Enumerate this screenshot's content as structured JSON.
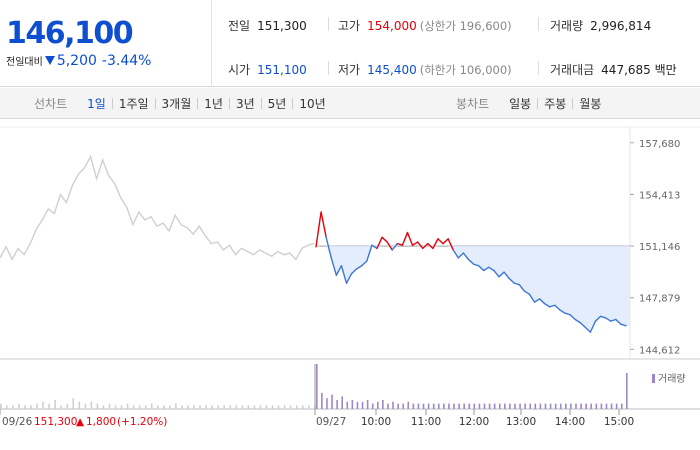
{
  "quote": {
    "current_price": "146,100",
    "change_label": "전일대비",
    "change_amount": "5,200",
    "change_percent": "-3.44%"
  },
  "stats": {
    "prev_close": {
      "label": "전일",
      "value": "151,300"
    },
    "high": {
      "label": "고가",
      "value": "154,000",
      "sub": "(상한가 196,600)"
    },
    "volume": {
      "label": "거래량",
      "value": "2,996,814"
    },
    "open": {
      "label": "시가",
      "value": "151,100"
    },
    "low": {
      "label": "저가",
      "value": "145,400",
      "sub": "(하한가 106,000)"
    },
    "trade_value": {
      "label": "거래대금",
      "value": "447,685 백만"
    }
  },
  "line_chart_tabs": {
    "title": "선차트",
    "items": [
      "1일",
      "1주일",
      "3개월",
      "1년",
      "3년",
      "5년",
      "10년"
    ],
    "active": "1일"
  },
  "candle_chart_tabs": {
    "title": "봉차트",
    "items": [
      "일봉",
      "주봉",
      "월봉"
    ]
  },
  "colors": {
    "up": "#e8000a",
    "down": "#0d4fd0",
    "line_today": "#3e76d6",
    "line_prev": "#cfcfcf",
    "fill_below_prev": "#e3edfb",
    "volume": "#9b87cc"
  },
  "chart_data": {
    "type": "line",
    "y_ticks": [
      "157,680",
      "154,413",
      "151,146",
      "147,879",
      "144,612"
    ],
    "y_tick_values": [
      157680,
      154413,
      151146,
      147879,
      144612
    ],
    "ylim": [
      144000,
      158300
    ],
    "reference_line": 151146,
    "x_ticks": [
      "10:00",
      "11:00",
      "12:00",
      "13:00",
      "14:00",
      "15:00"
    ],
    "prev_day_date": "09/26",
    "today_date": "09/27",
    "prev_day_close": "151,300",
    "prev_day_change": "1,800",
    "prev_day_change_percent": "(+1.20%)",
    "volume_legend": "거래량",
    "series": [
      {
        "session": "09/26",
        "values": [
          150400,
          151100,
          150300,
          151000,
          150600,
          151300,
          152200,
          152800,
          153500,
          153200,
          154400,
          153900,
          155000,
          155700,
          156100,
          156800,
          155400,
          156600,
          155600,
          155100,
          154200,
          153600,
          152500,
          153300,
          152800,
          153000,
          152400,
          152600,
          152100,
          153100,
          152500,
          152300,
          151900,
          152400,
          151800,
          151300,
          151400,
          150900,
          151200,
          150600,
          151000,
          150800,
          150600,
          150900,
          150700,
          150500,
          150800,
          150600,
          150700,
          150300,
          151000,
          151200,
          151300
        ]
      },
      {
        "session": "09/27",
        "values": [
          151100,
          153300,
          151700,
          150400,
          149300,
          149900,
          148800,
          149400,
          149700,
          149900,
          150200,
          151200,
          151000,
          151700,
          151400,
          150900,
          151300,
          151200,
          152000,
          151200,
          151400,
          151000,
          151300,
          151000,
          151600,
          151300,
          151600,
          150900,
          150400,
          150700,
          150300,
          150000,
          149900,
          149600,
          149800,
          149600,
          149200,
          149500,
          149100,
          148800,
          148700,
          148300,
          148100,
          147600,
          147800,
          147500,
          147300,
          147400,
          147100,
          146900,
          146800,
          146500,
          146300,
          146000,
          145700,
          146400,
          146700,
          146600,
          146400,
          146500,
          146200,
          146100
        ]
      }
    ],
    "volume": {
      "09/26": [
        3,
        2,
        2,
        3,
        2,
        2,
        3,
        4,
        3,
        5,
        2,
        3,
        6,
        4,
        3,
        4,
        3,
        2,
        3,
        2,
        2,
        3,
        2,
        2,
        2,
        3,
        2,
        2,
        2,
        3,
        2,
        2,
        2,
        2,
        2,
        2,
        2,
        2,
        2,
        2,
        2,
        2,
        2,
        2,
        2,
        2,
        2,
        2,
        2,
        2,
        2,
        2,
        2
      ],
      "09/27": [
        25,
        9,
        6,
        8,
        5,
        7,
        4,
        5,
        4,
        4,
        5,
        3,
        4,
        5,
        3,
        4,
        3,
        3,
        4,
        3,
        3,
        3,
        3,
        3,
        3,
        3,
        3,
        3,
        3,
        3,
        3,
        3,
        3,
        3,
        3,
        3,
        3,
        3,
        3,
        3,
        3,
        3,
        3,
        3,
        3,
        3,
        3,
        3,
        3,
        3,
        3,
        3,
        3,
        3,
        3,
        3,
        3,
        3,
        3,
        3,
        3,
        20
      ]
    }
  }
}
